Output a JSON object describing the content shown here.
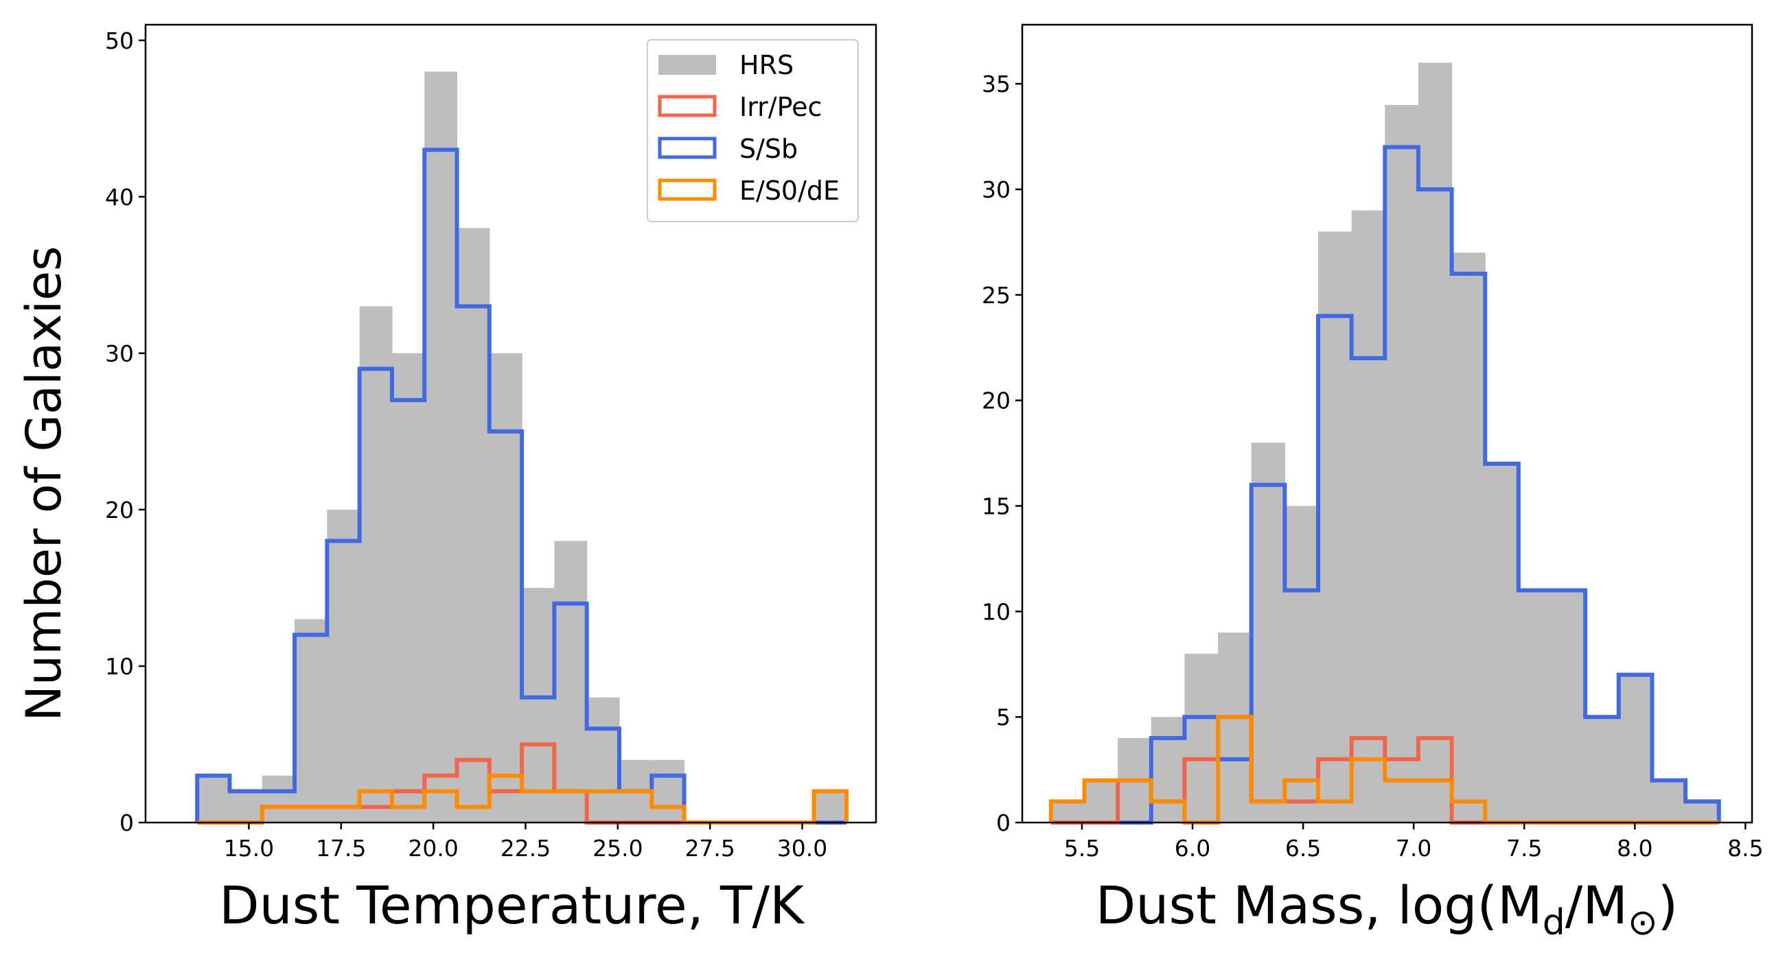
{
  "colors": {
    "hrs": "#bebebe",
    "irr_pec": "#f0654b",
    "s_sb": "#4169e1",
    "e_s0_de": "#ff8c00",
    "axes": "#000000"
  },
  "legend": {
    "hrs": "HRS",
    "irr_pec": "Irr/Pec",
    "s_sb": "S/Sb",
    "e_s0_de": "E/S0/dE"
  },
  "left": {
    "ylabel": "Number of Galaxies",
    "xlabel": "Dust Temperature, T/K",
    "xticks": [
      "15.0",
      "17.5",
      "20.0",
      "22.5",
      "25.0",
      "27.5",
      "30.0"
    ],
    "yticks": [
      "0",
      "10",
      "20",
      "30",
      "40",
      "50"
    ]
  },
  "right": {
    "xlabel_main": "Dust Mass, log(M",
    "xlabel_sub1": "d",
    "xlabel_mid": "/M",
    "xlabel_sub2": "⊙",
    "xlabel_end": ")",
    "xticks": [
      "5.5",
      "6.0",
      "6.5",
      "7.0",
      "7.5",
      "8.0",
      "8.5"
    ],
    "yticks": [
      "0",
      "5",
      "10",
      "15",
      "20",
      "25",
      "30",
      "35"
    ]
  },
  "chart_data": [
    {
      "type": "bar",
      "xlabel": "Dust Temperature, T/K",
      "ylabel": "Number of Galaxies",
      "xlim": [
        12.2,
        32.0
      ],
      "ylim": [
        0,
        51
      ],
      "bin_edges": [
        13.6,
        14.48,
        15.36,
        16.24,
        17.12,
        18.0,
        18.88,
        19.76,
        20.64,
        21.52,
        22.4,
        23.28,
        24.16,
        25.04,
        25.92,
        26.8,
        27.68,
        28.56,
        29.44,
        30.32,
        31.2
      ],
      "legend_position": "top-right",
      "series": [
        {
          "name": "HRS",
          "style": "filled",
          "values": [
            3,
            2,
            3,
            13,
            20,
            33,
            30,
            48,
            38,
            30,
            15,
            18,
            8,
            4,
            4,
            0,
            0,
            0,
            0,
            2
          ]
        },
        {
          "name": "Irr/Pec",
          "style": "step",
          "values": [
            0,
            0,
            1,
            1,
            1,
            1,
            2,
            3,
            4,
            2,
            5,
            2,
            0,
            0,
            0,
            0,
            0,
            0,
            0,
            0
          ]
        },
        {
          "name": "S/Sb",
          "style": "step",
          "values": [
            3,
            2,
            2,
            12,
            18,
            29,
            27,
            43,
            33,
            25,
            8,
            14,
            6,
            2,
            3,
            0,
            0,
            0,
            0,
            0
          ]
        },
        {
          "name": "E/S0/dE",
          "style": "step",
          "values": [
            0,
            0,
            1,
            1,
            1,
            2,
            1,
            2,
            1,
            3,
            2,
            2,
            2,
            2,
            1,
            0,
            0,
            0,
            0,
            2
          ]
        }
      ]
    },
    {
      "type": "bar",
      "xlabel": "Dust Mass, log(Md/M⊙)",
      "xlim": [
        5.23,
        8.53
      ],
      "ylim": [
        0,
        37.8
      ],
      "bin_edges": [
        5.36,
        5.511,
        5.662,
        5.813,
        5.964,
        6.115,
        6.266,
        6.417,
        6.568,
        6.719,
        6.87,
        7.021,
        7.172,
        7.323,
        7.474,
        7.625,
        7.776,
        7.927,
        8.078,
        8.229,
        8.38
      ],
      "series": [
        {
          "name": "HRS",
          "style": "filled",
          "values": [
            1,
            2,
            4,
            5,
            8,
            9,
            18,
            15,
            28,
            29,
            34,
            36,
            27,
            17,
            11,
            11,
            5,
            7,
            2,
            1
          ]
        },
        {
          "name": "S/Sb",
          "style": "step",
          "values": [
            0,
            0,
            0,
            4,
            5,
            3,
            16,
            11,
            24,
            22,
            32,
            30,
            26,
            17,
            11,
            11,
            5,
            7,
            2,
            1
          ]
        },
        {
          "name": "Irr/Pec",
          "style": "step",
          "values": [
            0,
            0,
            2,
            1,
            3,
            5,
            1,
            1,
            3,
            4,
            3,
            4,
            0,
            0,
            0,
            0,
            0,
            0,
            0,
            0
          ]
        },
        {
          "name": "E/S0/dE",
          "style": "step",
          "values": [
            1,
            2,
            2,
            1,
            0,
            5,
            1,
            2,
            1,
            3,
            2,
            2,
            1,
            0,
            0,
            0,
            0,
            0,
            0,
            0
          ]
        }
      ]
    }
  ]
}
